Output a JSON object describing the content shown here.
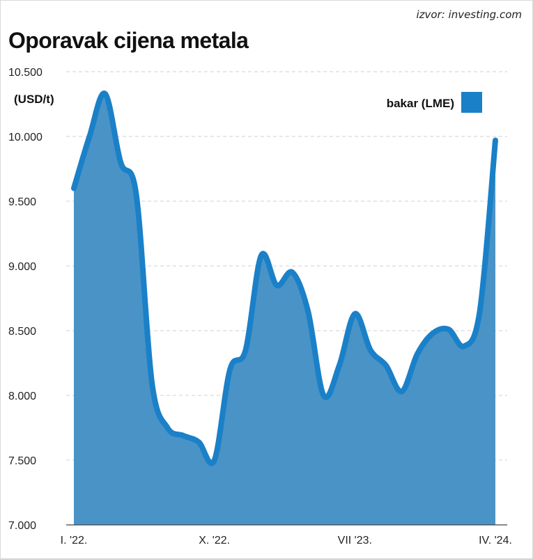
{
  "source": "izvor: investing.com",
  "title": "Oporavak cijena metala",
  "chart_data": {
    "type": "area",
    "title": "Oporavak cijena metala",
    "unit_label": "(USD/t)",
    "ylim": [
      7000,
      10500
    ],
    "yticks": [
      "10.500",
      "10.000",
      "9.500",
      "9.000",
      "8.500",
      "8.000",
      "7.500",
      "7.000"
    ],
    "ytick_values": [
      10500,
      10000,
      9500,
      9000,
      8500,
      8000,
      7500,
      7000
    ],
    "xticks": [
      "I. '22.",
      "X. '22.",
      "VII '23.",
      "IV. '24."
    ],
    "xtick_index": [
      0,
      9,
      18,
      27
    ],
    "grid": "horizontal dashed",
    "legend_position": "top-right",
    "series": [
      {
        "name": "bakar (LME)",
        "color": "#1a80c8",
        "fill_color": "#4a93c6",
        "x": [
          "2022-01",
          "2022-02",
          "2022-03",
          "2022-04",
          "2022-05",
          "2022-06",
          "2022-07",
          "2022-08",
          "2022-09",
          "2022-10",
          "2022-11",
          "2022-12",
          "2023-01",
          "2023-02",
          "2023-03",
          "2023-04",
          "2023-05",
          "2023-06",
          "2023-07",
          "2023-08",
          "2023-09",
          "2023-10",
          "2023-11",
          "2023-12",
          "2024-01",
          "2024-02",
          "2024-03",
          "2024-04"
        ],
        "values": [
          9600,
          10000,
          10330,
          9800,
          9550,
          8100,
          7750,
          7690,
          7640,
          7500,
          8200,
          8350,
          9080,
          8850,
          8950,
          8650,
          8000,
          8230,
          8630,
          8350,
          8230,
          8030,
          8320,
          8480,
          8510,
          8380,
          8650,
          9970
        ]
      }
    ]
  }
}
